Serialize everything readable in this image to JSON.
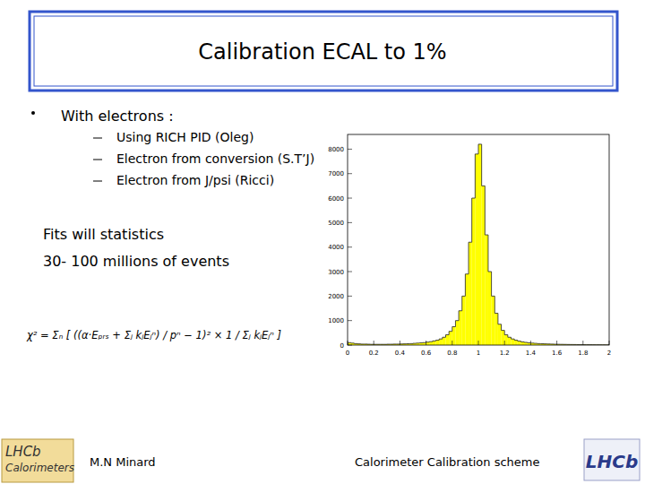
{
  "slide": {
    "title": "Calibration ECAL to 1%",
    "bullet": "With electrons :",
    "sub_bullets": [
      "Using RICH PID (Oleg)",
      "Electron from conversion (S.T’J)",
      "Electron from J/psi (Ricci)"
    ],
    "notes": [
      "Fits will statistics",
      "30- 100 millions of events"
    ],
    "formula": "χ² = Σₙ [ ((α·Eₚᵣₛ + Σⱼ kⱼEⱼⁿ) / pⁿ − 1)² × 1 / Σⱼ kⱼEⱼⁿ ]",
    "footer": {
      "author": "M.N Minard",
      "subject": "Calorimeter Calibration scheme",
      "logo_left": [
        "LHCb",
        "Calorimeters"
      ],
      "logo_right": "LHCb"
    }
  },
  "chart_data": {
    "type": "histogram",
    "color": "#ffff00",
    "grid": false,
    "bins": [
      0,
      0.025,
      0.05,
      0.075,
      0.1,
      0.125,
      0.15,
      0.175,
      0.2,
      0.225,
      0.25,
      0.275,
      0.3,
      0.325,
      0.35,
      0.375,
      0.4,
      0.425,
      0.45,
      0.475,
      0.5,
      0.525,
      0.55,
      0.575,
      0.6,
      0.625,
      0.65,
      0.675,
      0.7,
      0.725,
      0.75,
      0.775,
      0.8,
      0.825,
      0.85,
      0.875,
      0.9,
      0.925,
      0.95,
      0.975,
      1,
      1.025,
      1.05,
      1.075,
      1.1,
      1.125,
      1.15,
      1.175,
      1.2,
      1.225,
      1.25,
      1.275,
      1.3,
      1.325,
      1.35,
      1.375,
      1.4,
      1.425,
      1.45,
      1.475,
      1.5,
      1.525,
      1.55,
      1.575,
      1.6,
      1.625,
      1.65,
      1.675,
      1.7,
      1.725,
      1.75,
      1.775,
      1.8,
      1.825,
      1.85,
      1.875,
      1.9,
      1.925,
      1.95,
      1.975,
      2
    ],
    "values": [
      100,
      80,
      60,
      50,
      40,
      40,
      35,
      30,
      30,
      30,
      30,
      30,
      35,
      35,
      40,
      40,
      45,
      50,
      55,
      60,
      70,
      80,
      90,
      100,
      120,
      140,
      170,
      200,
      250,
      320,
      420,
      560,
      750,
      1000,
      1400,
      2000,
      2900,
      4200,
      6000,
      7800,
      8200,
      6500,
      4500,
      3000,
      2000,
      1300,
      850,
      600,
      420,
      320,
      250,
      200,
      160,
      130,
      110,
      90,
      80,
      70,
      60,
      55,
      50,
      45,
      40,
      35,
      32,
      30,
      28,
      25,
      23,
      22,
      20,
      18,
      17,
      16,
      15,
      14,
      13,
      12,
      11,
      10
    ],
    "xlim": [
      0,
      2
    ],
    "xticks": [
      0,
      0.2,
      0.4,
      0.6,
      0.8,
      1,
      1.2,
      1.4,
      1.6,
      1.8,
      2
    ],
    "ylim": [
      0,
      8600
    ],
    "yticks": [
      0,
      1000,
      2000,
      3000,
      4000,
      5000,
      6000,
      7000,
      8000
    ]
  }
}
